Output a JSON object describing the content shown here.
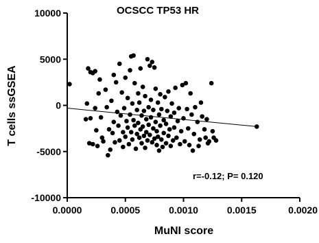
{
  "chart_data": {
    "type": "scatter",
    "title": "OCSCC TP53 HR",
    "xlabel": "MuNI score",
    "ylabel": "T cells ssGSEA",
    "xlim": [
      0.0,
      0.002
    ],
    "ylim": [
      -10000,
      10000
    ],
    "x_ticks": [
      0.0,
      0.0005,
      0.001,
      0.0015,
      0.002
    ],
    "x_tick_labels": [
      "0.0000",
      "0.0005",
      "0.0010",
      "0.0015",
      "0.0020"
    ],
    "y_ticks": [
      -10000,
      -5000,
      0,
      5000,
      10000
    ],
    "y_tick_labels": [
      "-10000",
      "-5000",
      "0",
      "5000",
      "10000"
    ],
    "grid": false,
    "annotation": "r=-0.12; P= 0.120",
    "trend_line": {
      "x": [
        0.0,
        0.00163
      ],
      "y": [
        -300,
        -2300
      ]
    },
    "points": [
      {
        "x": 2e-05,
        "y": 2300
      },
      {
        "x": 0.00018,
        "y": 4000
      },
      {
        "x": 0.0002,
        "y": 3600
      },
      {
        "x": 0.00022,
        "y": 3500
      },
      {
        "x": 0.00024,
        "y": 3700
      },
      {
        "x": 0.00017,
        "y": 200
      },
      {
        "x": 0.00016,
        "y": -1500
      },
      {
        "x": 0.0002,
        "y": -1400
      },
      {
        "x": 0.00019,
        "y": -4100
      },
      {
        "x": 0.00022,
        "y": -4200
      },
      {
        "x": 0.00026,
        "y": -4400
      },
      {
        "x": 0.00025,
        "y": -2700
      },
      {
        "x": 0.00024,
        "y": -300
      },
      {
        "x": 0.00027,
        "y": 1300
      },
      {
        "x": 0.00029,
        "y": -1300
      },
      {
        "x": 0.0003,
        "y": -3500
      },
      {
        "x": 0.00031,
        "y": -3900
      },
      {
        "x": 0.00028,
        "y": 2800
      },
      {
        "x": 0.00033,
        "y": 1700
      },
      {
        "x": 0.00034,
        "y": -200
      },
      {
        "x": 0.00035,
        "y": -5400
      },
      {
        "x": 0.00036,
        "y": -2600
      },
      {
        "x": 0.00037,
        "y": -4800
      },
      {
        "x": 0.00038,
        "y": 500
      },
      {
        "x": 0.00039,
        "y": -3000
      },
      {
        "x": 0.0004,
        "y": 3300
      },
      {
        "x": 0.0004,
        "y": -1800
      },
      {
        "x": 0.00041,
        "y": -4000
      },
      {
        "x": 0.00042,
        "y": 2500
      },
      {
        "x": 0.00043,
        "y": -700
      },
      {
        "x": 0.00044,
        "y": -2200
      },
      {
        "x": 0.00045,
        "y": 4500
      },
      {
        "x": 0.00045,
        "y": -3800
      },
      {
        "x": 0.00046,
        "y": -1100
      },
      {
        "x": 0.00047,
        "y": 1400
      },
      {
        "x": 0.00048,
        "y": -4500
      },
      {
        "x": 0.00048,
        "y": -2900
      },
      {
        "x": 0.00049,
        "y": -300
      },
      {
        "x": 0.0005,
        "y": 3000
      },
      {
        "x": 0.0005,
        "y": -3400
      },
      {
        "x": 0.00051,
        "y": -1700
      },
      {
        "x": 0.00052,
        "y": 800
      },
      {
        "x": 0.00052,
        "y": -2400
      },
      {
        "x": 0.00053,
        "y": -4200
      },
      {
        "x": 0.00054,
        "y": 3800
      },
      {
        "x": 0.00054,
        "y": -1000
      },
      {
        "x": 0.00055,
        "y": 5300
      },
      {
        "x": 0.00055,
        "y": -2900
      },
      {
        "x": 0.00056,
        "y": 200
      },
      {
        "x": 0.00056,
        "y": -3700
      },
      {
        "x": 0.00057,
        "y": 5400
      },
      {
        "x": 0.00057,
        "y": -1600
      },
      {
        "x": 0.00058,
        "y": 2400
      },
      {
        "x": 0.00058,
        "y": -2200
      },
      {
        "x": 0.00059,
        "y": -4700
      },
      {
        "x": 0.0006,
        "y": -500
      },
      {
        "x": 0.0006,
        "y": -3100
      },
      {
        "x": 0.00061,
        "y": 1300
      },
      {
        "x": 0.00061,
        "y": -1900
      },
      {
        "x": 0.00062,
        "y": -3500
      },
      {
        "x": 0.00062,
        "y": 300
      },
      {
        "x": 0.00063,
        "y": -2600
      },
      {
        "x": 0.00063,
        "y": 4000
      },
      {
        "x": 0.00064,
        "y": -1100
      },
      {
        "x": 0.00064,
        "y": -4100
      },
      {
        "x": 0.00065,
        "y": 2000
      },
      {
        "x": 0.00065,
        "y": -2300
      },
      {
        "x": 0.00066,
        "y": -3300
      },
      {
        "x": 0.00066,
        "y": -600
      },
      {
        "x": 0.00067,
        "y": -4600
      },
      {
        "x": 0.00067,
        "y": 1000
      },
      {
        "x": 0.00068,
        "y": -1500
      },
      {
        "x": 0.00068,
        "y": -2900
      },
      {
        "x": 0.00069,
        "y": 5000
      },
      {
        "x": 0.00069,
        "y": -3800
      },
      {
        "x": 0.0007,
        "y": -200
      },
      {
        "x": 0.0007,
        "y": -2100
      },
      {
        "x": 0.00071,
        "y": 4300
      },
      {
        "x": 0.00071,
        "y": -3200
      },
      {
        "x": 0.00072,
        "y": 600
      },
      {
        "x": 0.00072,
        "y": -1300
      },
      {
        "x": 0.00073,
        "y": -4000
      },
      {
        "x": 0.00073,
        "y": 4700
      },
      {
        "x": 0.00074,
        "y": -2500
      },
      {
        "x": 0.00074,
        "y": -500
      },
      {
        "x": 0.00075,
        "y": -3600
      },
      {
        "x": 0.00075,
        "y": 4100
      },
      {
        "x": 0.00076,
        "y": -1800
      },
      {
        "x": 0.00076,
        "y": 1800
      },
      {
        "x": 0.00077,
        "y": -4300
      },
      {
        "x": 0.00077,
        "y": -2800
      },
      {
        "x": 0.00078,
        "y": 300
      },
      {
        "x": 0.00078,
        "y": -3400
      },
      {
        "x": 0.00079,
        "y": -1000
      },
      {
        "x": 0.00079,
        "y": -4900
      },
      {
        "x": 0.0008,
        "y": 1200
      },
      {
        "x": 0.0008,
        "y": -2200
      },
      {
        "x": 0.00081,
        "y": -3700
      },
      {
        "x": 0.00081,
        "y": -400
      },
      {
        "x": 0.00082,
        "y": -4500
      },
      {
        "x": 0.00083,
        "y": -1600
      },
      {
        "x": 0.00083,
        "y": -3000
      },
      {
        "x": 0.00084,
        "y": 900
      },
      {
        "x": 0.00085,
        "y": -4100
      },
      {
        "x": 0.00085,
        "y": -2000
      },
      {
        "x": 0.00086,
        "y": -600
      },
      {
        "x": 0.00087,
        "y": -3300
      },
      {
        "x": 0.00087,
        "y": 1500
      },
      {
        "x": 0.00088,
        "y": -2600
      },
      {
        "x": 0.00089,
        "y": -4400
      },
      {
        "x": 0.00089,
        "y": -1200
      },
      {
        "x": 0.0009,
        "y": 200
      },
      {
        "x": 0.00091,
        "y": -3800
      },
      {
        "x": 0.00092,
        "y": -2400
      },
      {
        "x": 0.00092,
        "y": -800
      },
      {
        "x": 0.00093,
        "y": 1900
      },
      {
        "x": 0.00094,
        "y": -3500
      },
      {
        "x": 0.00095,
        "y": -1700
      },
      {
        "x": 0.00096,
        "y": -300
      },
      {
        "x": 0.00097,
        "y": -4200
      },
      {
        "x": 0.00098,
        "y": -2800
      },
      {
        "x": 0.00099,
        "y": 2200
      },
      {
        "x": 0.001,
        "y": -1400
      },
      {
        "x": 0.00101,
        "y": -3900
      },
      {
        "x": 0.00102,
        "y": 2400
      },
      {
        "x": 0.00103,
        "y": -400
      },
      {
        "x": 0.00104,
        "y": -2500
      },
      {
        "x": 0.00105,
        "y": -4300
      },
      {
        "x": 0.00106,
        "y": 1300
      },
      {
        "x": 0.00107,
        "y": -1000
      },
      {
        "x": 0.00108,
        "y": -4900
      },
      {
        "x": 0.00109,
        "y": -3100
      },
      {
        "x": 0.0011,
        "y": -200
      },
      {
        "x": 0.00112,
        "y": -1800
      },
      {
        "x": 0.00113,
        "y": -4400
      },
      {
        "x": 0.00114,
        "y": -3700
      },
      {
        "x": 0.00115,
        "y": 300
      },
      {
        "x": 0.00116,
        "y": -1200
      },
      {
        "x": 0.00118,
        "y": -2600
      },
      {
        "x": 0.00119,
        "y": -3500
      },
      {
        "x": 0.0012,
        "y": -1500
      },
      {
        "x": 0.00121,
        "y": -4100
      },
      {
        "x": 0.00122,
        "y": -3900
      },
      {
        "x": 0.00124,
        "y": 2400
      },
      {
        "x": 0.00125,
        "y": -2800
      },
      {
        "x": 0.00126,
        "y": -3500
      },
      {
        "x": 0.00128,
        "y": -3800
      },
      {
        "x": 0.00163,
        "y": -2300
      }
    ]
  }
}
